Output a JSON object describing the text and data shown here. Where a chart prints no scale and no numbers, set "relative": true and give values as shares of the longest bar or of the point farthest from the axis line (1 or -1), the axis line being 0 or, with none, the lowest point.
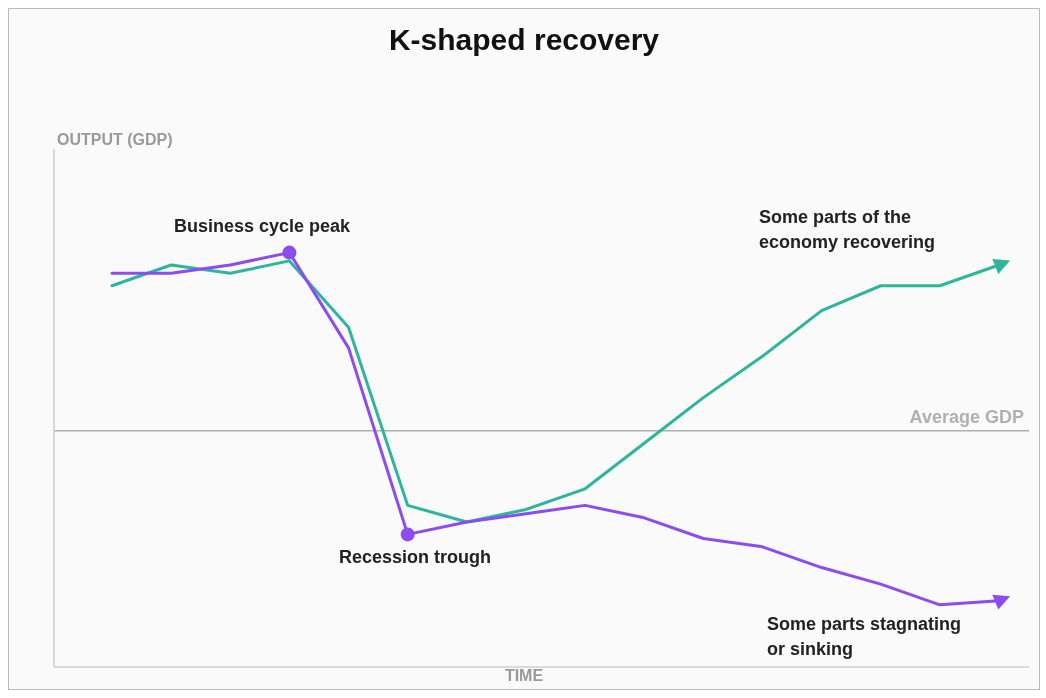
{
  "chart_data": {
    "type": "line",
    "title": "K-shaped recovery",
    "xlabel": "TIME",
    "relative": true,
    "marker": "none",
    "grid": false,
    "categories": [
      null,
      null,
      null,
      null,
      null,
      null,
      null,
      null,
      null,
      null,
      null,
      null,
      null,
      null,
      null,
      null
    ],
    "series": [
      {
        "color": "#2fb59c",
        "values": [
          0.92,
          0.97,
          0.95,
          0.98,
          0.82,
          0.39,
          0.35,
          0.38,
          0.43,
          0.54,
          0.65,
          0.75,
          0.86,
          0.92,
          0.92,
          0.97
        ]
      },
      {
        "color": "#8b4cf0",
        "values": [
          0.95,
          0.95,
          0.97,
          1.0,
          0.77,
          0.32,
          0.35,
          0.37,
          0.39,
          0.36,
          0.31,
          0.29,
          0.24,
          0.2,
          0.15,
          0.16
        ]
      }
    ],
    "ref_lines": [
      {
        "axis": "y",
        "value": 0.57,
        "label": "Average GDP",
        "color": "#b0b0b0"
      }
    ],
    "annotations": [
      {
        "text": "Business cycle peak",
        "y": 1.0
      },
      {
        "text": "Recession trough",
        "y": 0.32
      },
      "Some parts of the economy recovering",
      "Some parts stagnating or sinking",
      "OUTPUT (GDP)"
    ]
  }
}
